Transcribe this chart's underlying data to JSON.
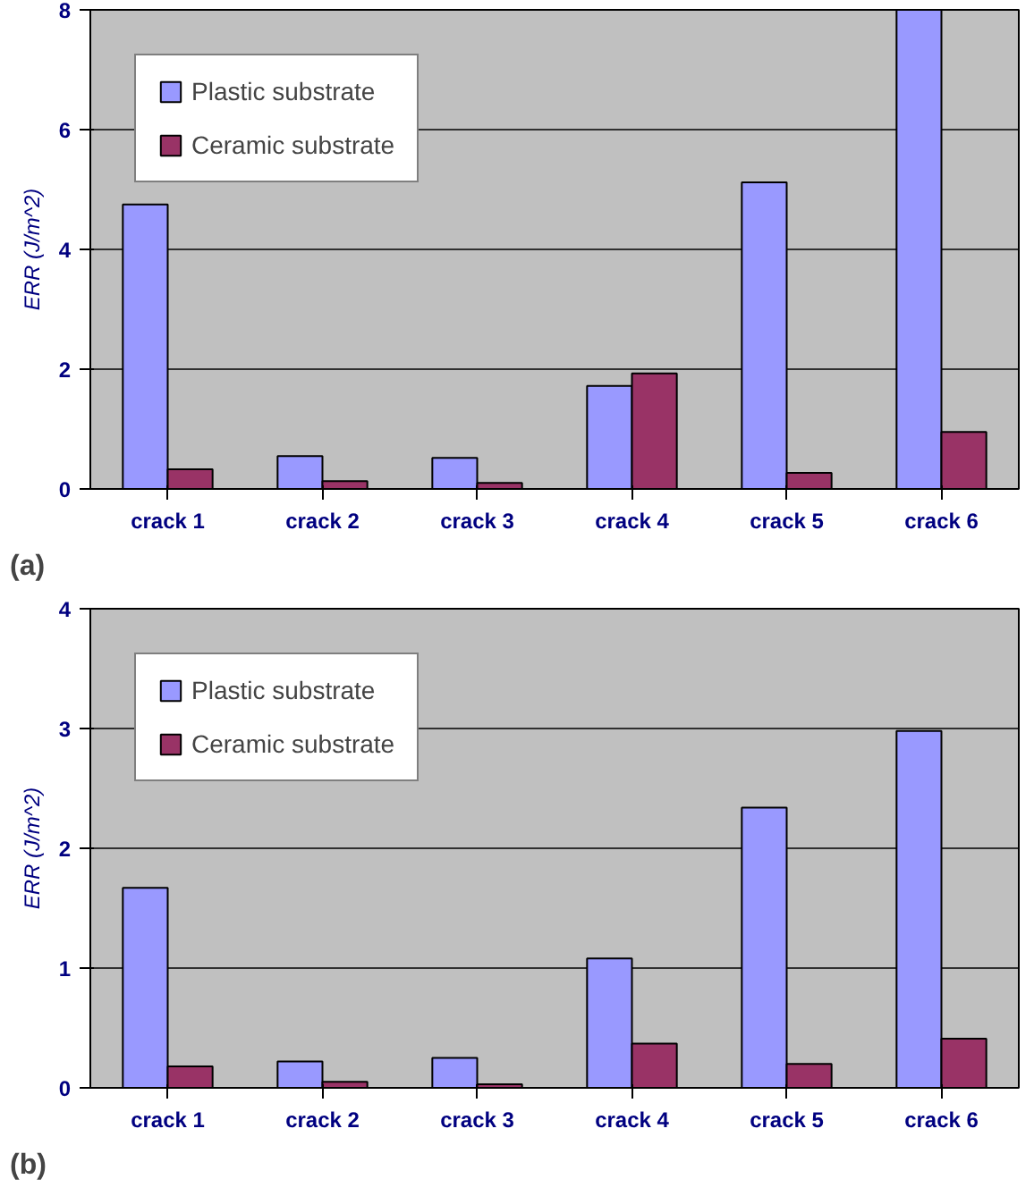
{
  "chart_data": [
    {
      "type": "bar",
      "categories": [
        "crack 1",
        "crack 2",
        "crack 3",
        "crack 4",
        "crack 5",
        "crack 6"
      ],
      "ylabel": "ERR (J/m^2)",
      "ylim": [
        0,
        8
      ],
      "yticks": [
        0,
        2,
        4,
        6,
        8
      ],
      "grid": "y",
      "legend": "top left",
      "annotations": [
        "(a)"
      ],
      "series": [
        {
          "name": "Plastic substrate",
          "color": "#9999ff",
          "values": [
            4.75,
            0.55,
            0.52,
            1.72,
            5.12,
            8.0
          ]
        },
        {
          "name": "Ceramic substrate",
          "color": "#993366",
          "values": [
            0.33,
            0.13,
            0.1,
            1.93,
            0.27,
            0.95
          ]
        }
      ]
    },
    {
      "type": "bar",
      "categories": [
        "crack 1",
        "crack 2",
        "crack 3",
        "crack 4",
        "crack 5",
        "crack 6"
      ],
      "ylabel": "ERR (J/m^2)",
      "ylim": [
        0,
        4
      ],
      "yticks": [
        0,
        1,
        2,
        3,
        4
      ],
      "grid": "y",
      "legend": "top left",
      "annotations": [
        "(b)"
      ],
      "series": [
        {
          "name": "Plastic substrate",
          "color": "#9999ff",
          "values": [
            1.67,
            0.22,
            0.25,
            1.08,
            2.34,
            2.98
          ]
        },
        {
          "name": "Ceramic substrate",
          "color": "#993366",
          "values": [
            0.18,
            0.05,
            0.03,
            0.37,
            0.2,
            0.41
          ]
        }
      ]
    }
  ]
}
